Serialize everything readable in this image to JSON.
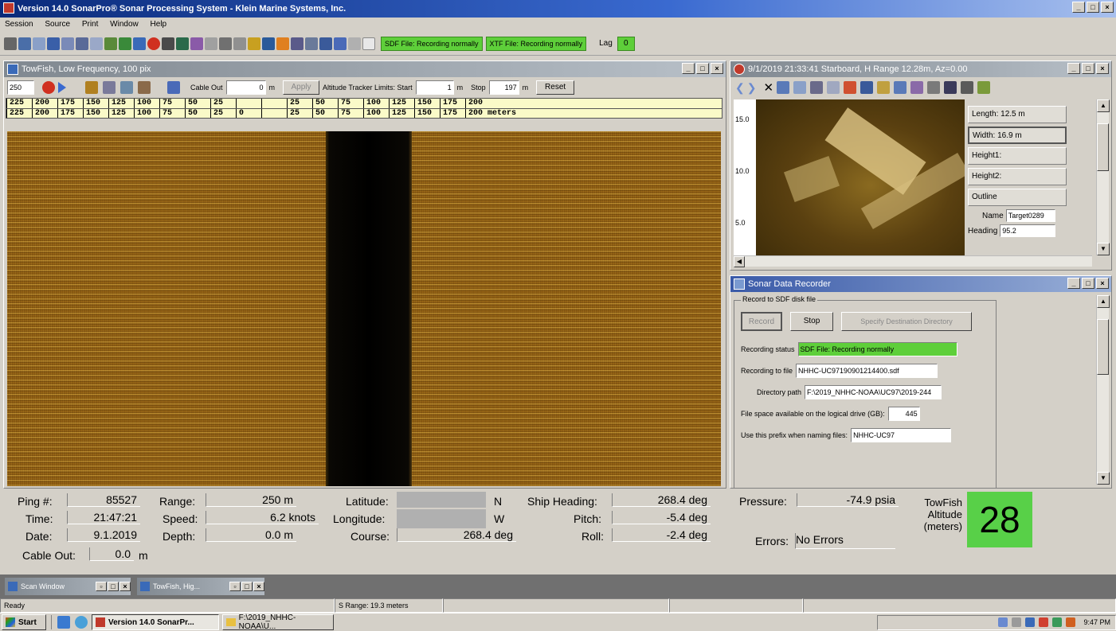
{
  "app": {
    "title": "Version 14.0 SonarPro® Sonar Processing System - Klein Marine Systems, Inc."
  },
  "menu": [
    "Session",
    "Source",
    "Print",
    "Window",
    "Help"
  ],
  "toolbar": {
    "sdf_status": "SDF File: Recording normally",
    "xtf_status": "XTF File: Recording normally",
    "lag_label": "Lag",
    "lag_value": "0"
  },
  "towfish_window": {
    "title": "TowFish, Low Frequency, 100 pix",
    "range_select": "250",
    "cable_out_label": "Cable Out",
    "cable_out_value": "0",
    "cable_out_unit": "m",
    "apply_label": "Apply",
    "altitude_tracker_label": "Altitude Tracker Limits: Start",
    "start_value": "1",
    "start_unit": "m",
    "stop_label": "Stop",
    "stop_value": "197",
    "stop_unit": "m",
    "reset_label": "Reset",
    "scale_top": [
      "225",
      "200",
      "175",
      "150",
      "125",
      "100",
      "75",
      "50",
      "25",
      "",
      "",
      "25",
      "50",
      "75",
      "100",
      "125",
      "150",
      "175",
      "200"
    ],
    "scale_bottom": [
      "225",
      "200",
      "175",
      "150",
      "125",
      "100",
      "75",
      "50",
      "25",
      "0",
      "",
      "25",
      "50",
      "75",
      "100",
      "125",
      "150",
      "175",
      "200 meters"
    ]
  },
  "target_window": {
    "title": "9/1/2019 21:33:41 Starboard, H Range 12.28m, Az=0.00",
    "y_ticks": [
      "15.0",
      "10.0",
      "5.0"
    ],
    "measurements": {
      "length": "Length: 12.5 m",
      "width": "Width: 16.9 m",
      "height1": "Height1:",
      "height2": "Height2:",
      "outline": "Outline",
      "name_label": "Name",
      "name_value": "Target0289",
      "heading_label": "Heading",
      "heading_value": "95.2"
    }
  },
  "recorder_window": {
    "title": "Sonar Data Recorder",
    "group_label": "Record to SDF disk file",
    "record_btn": "Record",
    "stop_btn": "Stop",
    "specify_btn": "Specify Destination Directory",
    "status_label": "Recording status",
    "status_value": "SDF File: Recording normally",
    "file_label": "Recording to file",
    "file_value": "NHHC-UC97190901214400.sdf",
    "dir_label": "Directory path",
    "dir_value": "F:\\2019_NHHC-NOAA\\UC97\\2019-244",
    "space_label": "File space available on the logical drive (GB):",
    "space_value": "445",
    "prefix_label": "Use this prefix when naming files:",
    "prefix_value": "NHHC-UC97"
  },
  "status_panel": {
    "ping_label": "Ping #:",
    "ping_value": "85527",
    "time_label": "Time:",
    "time_value": "21:47:21",
    "date_label": "Date:",
    "date_value": "9.1.2019",
    "cable_label": "Cable Out:",
    "cable_value": "0.0",
    "cable_unit": "m",
    "range_label": "Range:",
    "range_value": "250 m",
    "speed_label": "Speed:",
    "speed_value": "6.2 knots",
    "depth_label": "Depth:",
    "depth_value": "0.0 m",
    "lat_label": "Latitude:",
    "lat_dir": "N",
    "lon_label": "Longitude:",
    "lon_dir": "W",
    "course_label": "Course:",
    "course_value": "268.4 deg",
    "heading_label": "Ship Heading:",
    "heading_value": "268.4 deg",
    "pitch_label": "Pitch:",
    "pitch_value": "-5.4 deg",
    "roll_label": "Roll:",
    "roll_value": "-2.4 deg",
    "pressure_label": "Pressure:",
    "pressure_value": "-74.9 psia",
    "errors_label": "Errors:",
    "errors_value": "No Errors",
    "altitude_label_1": "TowFish",
    "altitude_label_2": "Altitude",
    "altitude_label_3": "(meters)",
    "altitude_value": "28"
  },
  "minimized": {
    "scan_label": "Scan Window",
    "towfish_label": "TowFish, Hig..."
  },
  "statusbar": {
    "ready": "Ready",
    "range_info": "S Range: 19.3 meters"
  },
  "taskbar": {
    "start": "Start",
    "task1": "Version 14.0 SonarPr...",
    "task2": "F:\\2019_NHHC-NOAA\\U...",
    "clock": "9:47 PM"
  },
  "colors": {
    "recording_green": "#5ecf3a",
    "altitude_green": "#58d048",
    "title_blue": "#1c3a8a"
  }
}
